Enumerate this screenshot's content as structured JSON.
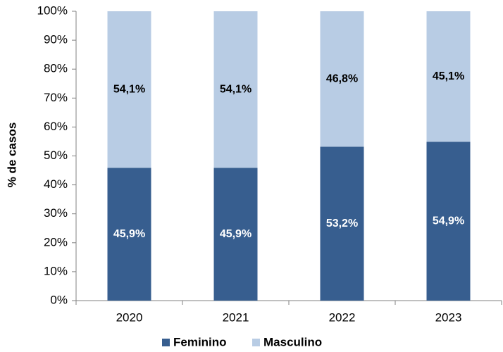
{
  "chart_data": {
    "type": "stacked_bar",
    "y_label": "% de casos",
    "categories": [
      "2020",
      "2021",
      "2022",
      "2023"
    ],
    "series": [
      {
        "name": "Feminino",
        "color": "#375e8f",
        "label_color": "#ffffff",
        "values": [
          45.9,
          45.9,
          53.2,
          54.9
        ],
        "value_labels": [
          "45,9%",
          "45,9%",
          "53,2%",
          "54,9%"
        ]
      },
      {
        "name": "Masculino",
        "color": "#b8cce4",
        "label_color": "#000000",
        "values": [
          54.1,
          54.1,
          46.8,
          45.1
        ],
        "value_labels": [
          "54,1%",
          "54,1%",
          "46,8%",
          "45,1%"
        ]
      }
    ],
    "ylim": [
      0,
      100
    ],
    "yticks": [
      {
        "value": 0,
        "label": "0%"
      },
      {
        "value": 10,
        "label": "10%"
      },
      {
        "value": 20,
        "label": "20%"
      },
      {
        "value": 30,
        "label": "30%"
      },
      {
        "value": 40,
        "label": "40%"
      },
      {
        "value": 50,
        "label": "50%"
      },
      {
        "value": 60,
        "label": "60%"
      },
      {
        "value": 70,
        "label": "70%"
      },
      {
        "value": 80,
        "label": "80%"
      },
      {
        "value": 90,
        "label": "90%"
      },
      {
        "value": 100,
        "label": "100%"
      }
    ],
    "legend": "bottom"
  }
}
